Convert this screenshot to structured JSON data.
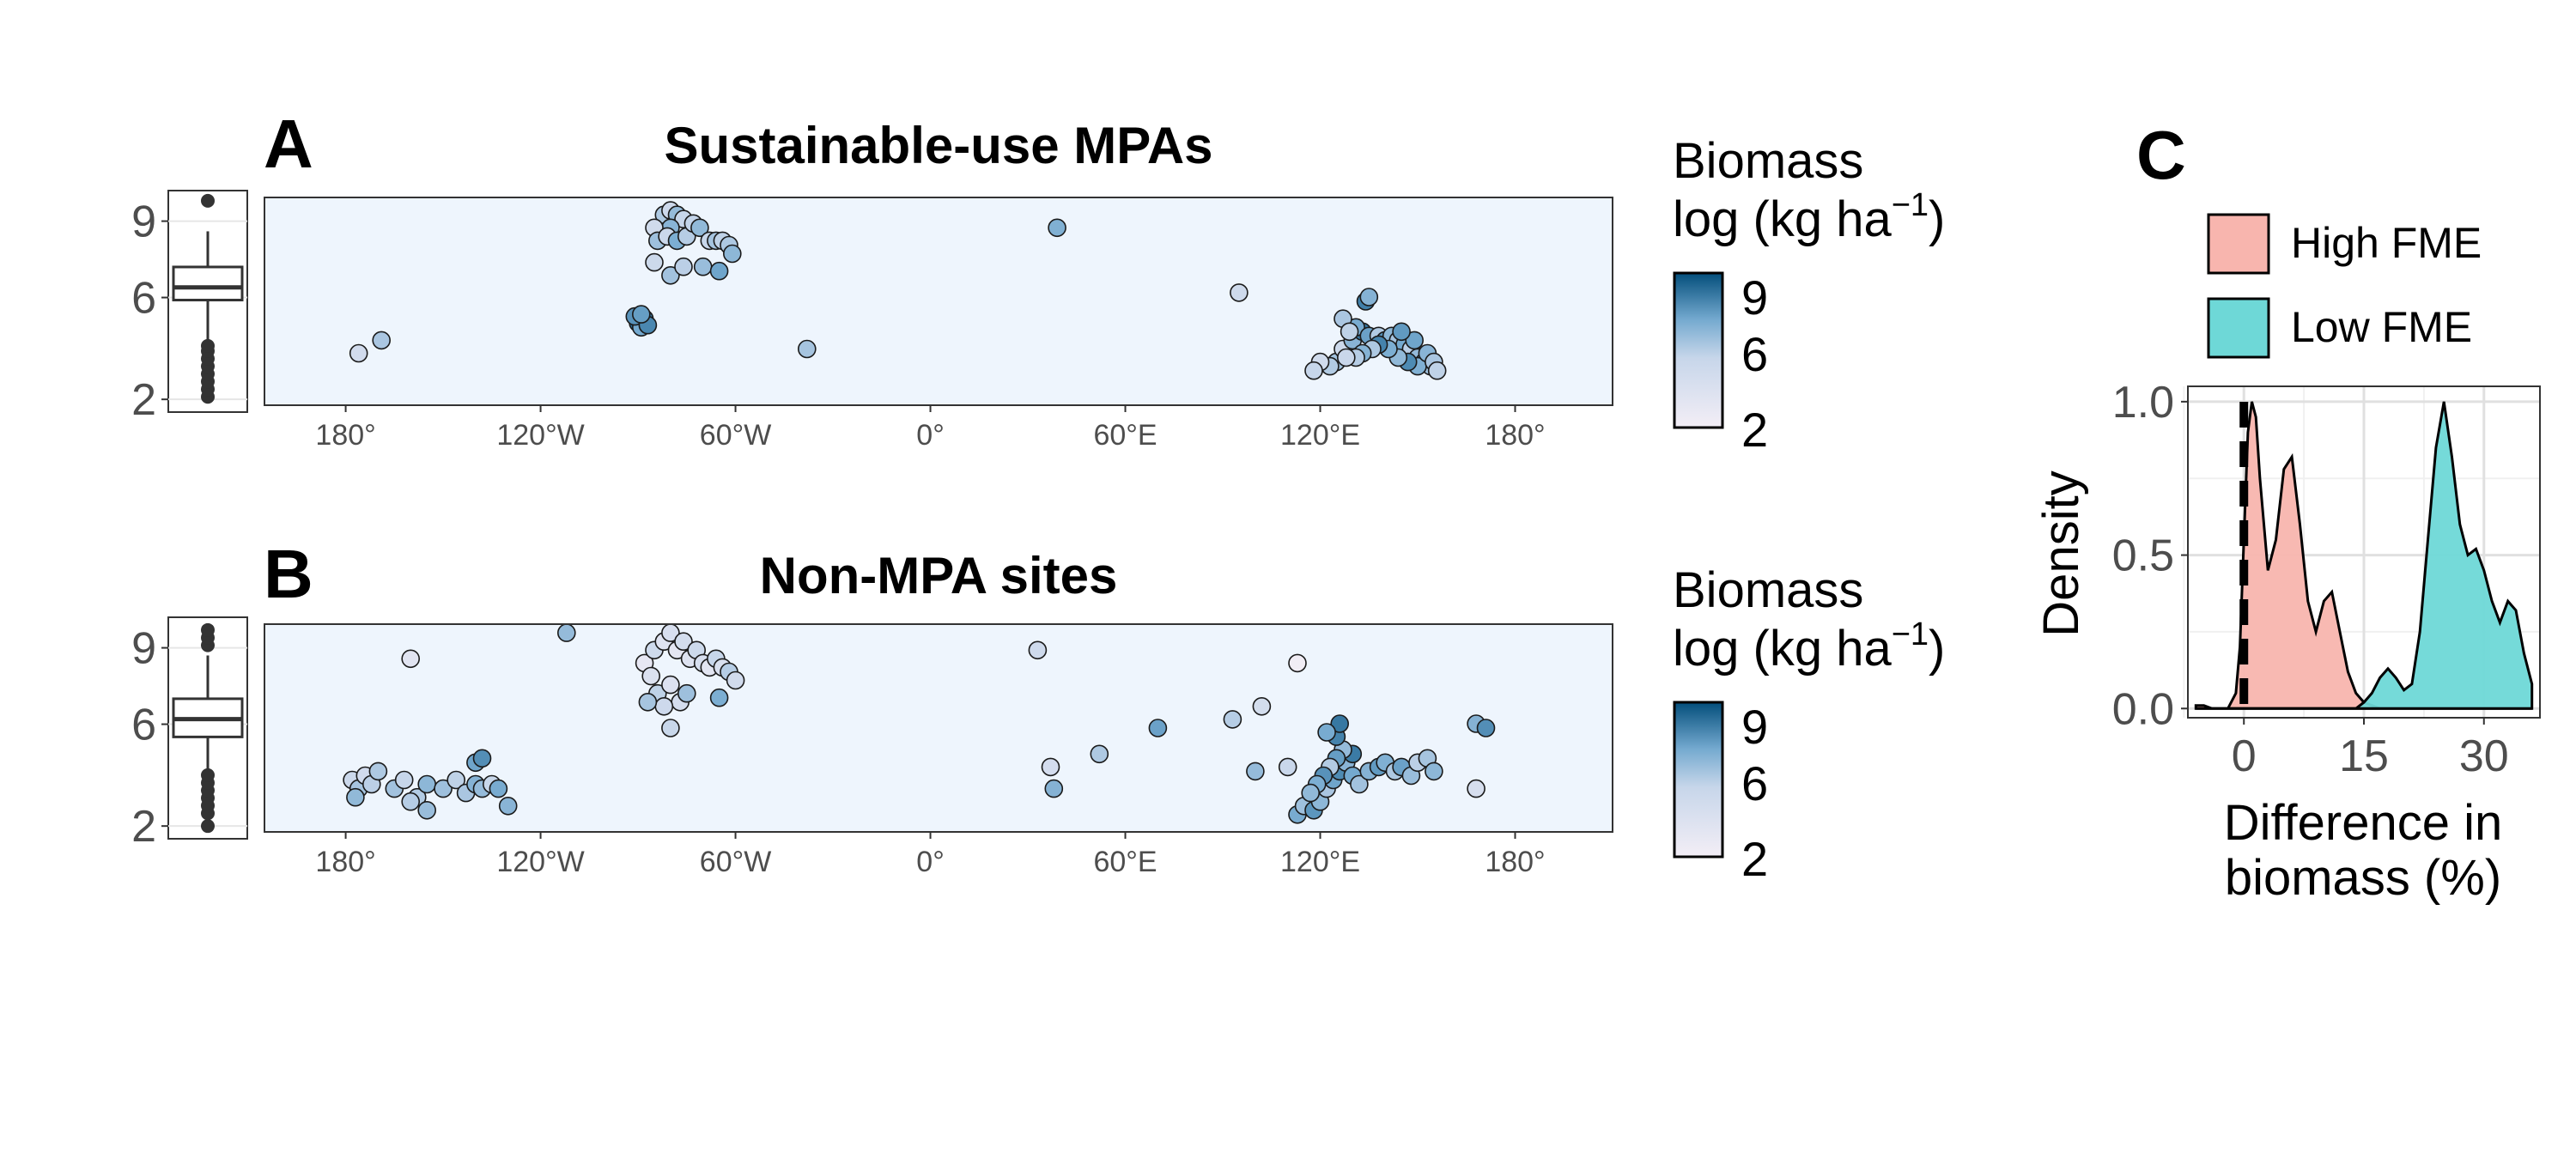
{
  "figure": {
    "panel_a": {
      "letter": "A",
      "title": "Sustainable-use MPAs",
      "legend": {
        "title_line1": "Biomass",
        "title_line2": "log (kg ha",
        "title_sup": "−1",
        "title_close": ")",
        "ticks": [
          "9",
          "6",
          "2"
        ]
      }
    },
    "panel_b": {
      "letter": "B",
      "title": "Non-MPA sites",
      "legend": {
        "title_line1": "Biomass",
        "title_line2": "log (kg ha",
        "title_sup": "−1",
        "title_close": ")",
        "ticks": [
          "9",
          "6",
          "2"
        ]
      }
    },
    "panel_c": {
      "letter": "C",
      "ylabel": "Density",
      "xlabel_line1": "Difference in",
      "xlabel_line2": "biomass (%)",
      "legend": [
        {
          "label": "High FME",
          "color": "#F8B5AE"
        },
        {
          "label": "Low FME",
          "color": "#6ED8D7"
        }
      ]
    },
    "map_ticks": [
      "180°",
      "120°W",
      "60°W",
      "0°",
      "60°E",
      "120°E",
      "180°"
    ],
    "colors": {
      "ocean": "#EEF5FD",
      "land": "#D9D9D9",
      "gradient_low": "#F3EEF6",
      "gradient_mid": "#74A9CF",
      "gradient_high": "#034E7B",
      "point_stroke": "#1a1a1a",
      "high_fme": "#F8B5AE",
      "low_fme": "#6ED8D7"
    }
  },
  "chart_data": [
    {
      "type": "scatter",
      "panel": "A",
      "title": "Sustainable-use MPAs",
      "xlabel": "",
      "ylabel": "",
      "x_ticks": [
        "180°",
        "120°W",
        "60°W",
        "0°",
        "60°E",
        "120°E",
        "180°"
      ],
      "xlim": [
        -205,
        210
      ],
      "color_scale": {
        "name": "Biomass log (kg ha−1)",
        "range": [
          2,
          10
        ],
        "ticks": [
          2,
          6,
          9
        ]
      },
      "marginal_boxplot": {
        "y_ticks": [
          2,
          6,
          9
        ],
        "ylim": [
          1.5,
          10.2
        ],
        "min": 2.1,
        "q1": 5.9,
        "median": 6.4,
        "q3": 7.2,
        "max": 8.6,
        "outliers_low": [
          2.1,
          2.4,
          2.7,
          3.0,
          3.3,
          3.6,
          3.9,
          4.1
        ],
        "outliers_high": [
          9.8
        ]
      },
      "points": [
        {
          "lon": -176,
          "lat": -8,
          "v": 4.8
        },
        {
          "lon": -169,
          "lat": -5,
          "v": 6.3
        },
        {
          "lon": -88,
          "lat": 0,
          "v": 8.8
        },
        {
          "lon": -90,
          "lat": -1,
          "v": 9.2
        },
        {
          "lon": -89,
          "lat": -2,
          "v": 7.6
        },
        {
          "lon": -91,
          "lat": 0.5,
          "v": 8.2
        },
        {
          "lon": -87,
          "lat": -1.5,
          "v": 8.5
        },
        {
          "lon": -89,
          "lat": 1,
          "v": 7.9
        },
        {
          "lon": -82,
          "lat": 24,
          "v": 6.2
        },
        {
          "lon": -80,
          "lat": 25,
          "v": 5.1
        },
        {
          "lon": -78,
          "lat": 24,
          "v": 6.8
        },
        {
          "lon": -76,
          "lat": 23,
          "v": 5.6
        },
        {
          "lon": -80,
          "lat": 21,
          "v": 7.1
        },
        {
          "lon": -85,
          "lat": 21,
          "v": 4.9
        },
        {
          "lon": -84,
          "lat": 18,
          "v": 6.6
        },
        {
          "lon": -81,
          "lat": 19,
          "v": 5.3
        },
        {
          "lon": -78,
          "lat": 18,
          "v": 7.4
        },
        {
          "lon": -75,
          "lat": 19,
          "v": 6.0
        },
        {
          "lon": -73,
          "lat": 22,
          "v": 5.7
        },
        {
          "lon": -71,
          "lat": 21,
          "v": 6.9
        },
        {
          "lon": -68,
          "lat": 18,
          "v": 5.5
        },
        {
          "lon": -66,
          "lat": 18,
          "v": 6.4
        },
        {
          "lon": -64,
          "lat": 18,
          "v": 5.8
        },
        {
          "lon": -62,
          "lat": 17,
          "v": 6.2
        },
        {
          "lon": -61,
          "lat": 15,
          "v": 7.0
        },
        {
          "lon": -80,
          "lat": 10,
          "v": 6.5
        },
        {
          "lon": -76,
          "lat": 12,
          "v": 5.9
        },
        {
          "lon": -70,
          "lat": 12,
          "v": 6.7
        },
        {
          "lon": -65,
          "lat": 11,
          "v": 7.7
        },
        {
          "lon": -85,
          "lat": 13,
          "v": 5.2
        },
        {
          "lon": -38,
          "lat": -7,
          "v": 6.4
        },
        {
          "lon": 39,
          "lat": 21,
          "v": 7.3
        },
        {
          "lon": 95,
          "lat": 6,
          "v": 5.0
        },
        {
          "lon": 125,
          "lat": -10,
          "v": 6.5
        },
        {
          "lon": 127,
          "lat": -7,
          "v": 5.2
        },
        {
          "lon": 130,
          "lat": -5,
          "v": 7.1
        },
        {
          "lon": 133,
          "lat": -3,
          "v": 8.9
        },
        {
          "lon": 131,
          "lat": -2,
          "v": 7.5
        },
        {
          "lon": 127,
          "lat": 0,
          "v": 6.3
        },
        {
          "lon": 129,
          "lat": -3,
          "v": 5.8
        },
        {
          "lon": 135,
          "lat": -4,
          "v": 7.8
        },
        {
          "lon": 138,
          "lat": -4,
          "v": 6.1
        },
        {
          "lon": 140,
          "lat": -5,
          "v": 8.2
        },
        {
          "lon": 142,
          "lat": -4,
          "v": 7.0
        },
        {
          "lon": 144,
          "lat": -5,
          "v": 6.4
        },
        {
          "lon": 146,
          "lat": -6,
          "v": 7.6
        },
        {
          "lon": 148,
          "lat": -7,
          "v": 5.9
        },
        {
          "lon": 150,
          "lat": -9,
          "v": 6.8
        },
        {
          "lon": 152,
          "lat": -10,
          "v": 7.9
        },
        {
          "lon": 154,
          "lat": -11,
          "v": 6.6
        },
        {
          "lon": 150,
          "lat": -11,
          "v": 7.3
        },
        {
          "lon": 147,
          "lat": -10,
          "v": 8.4
        },
        {
          "lon": 144,
          "lat": -9,
          "v": 6.9
        },
        {
          "lon": 141,
          "lat": -7,
          "v": 7.4
        },
        {
          "lon": 138,
          "lat": -6,
          "v": 8.6
        },
        {
          "lon": 136,
          "lat": -7,
          "v": 6.2
        },
        {
          "lon": 133,
          "lat": -8,
          "v": 7.2
        },
        {
          "lon": 131,
          "lat": -9,
          "v": 6.0
        },
        {
          "lon": 128,
          "lat": -9,
          "v": 5.4
        },
        {
          "lon": 123,
          "lat": -11,
          "v": 6.1
        },
        {
          "lon": 120,
          "lat": -10,
          "v": 4.9
        },
        {
          "lon": 118,
          "lat": -12,
          "v": 5.6
        },
        {
          "lon": 153,
          "lat": -8,
          "v": 7.1
        },
        {
          "lon": 155,
          "lat": -10,
          "v": 6.3
        },
        {
          "lon": 156,
          "lat": -12,
          "v": 5.8
        },
        {
          "lon": 149,
          "lat": -5,
          "v": 7.7
        },
        {
          "lon": 145,
          "lat": -3,
          "v": 8.0
        },
        {
          "lon": 134,
          "lat": 4,
          "v": 8.7
        },
        {
          "lon": 135,
          "lat": 5,
          "v": 7.2
        }
      ]
    },
    {
      "type": "scatter",
      "panel": "B",
      "title": "Non-MPA sites",
      "xlabel": "",
      "ylabel": "",
      "x_ticks": [
        "180°",
        "120°W",
        "60°W",
        "0°",
        "60°E",
        "120°E",
        "180°"
      ],
      "xlim": [
        -205,
        210
      ],
      "color_scale": {
        "name": "Biomass log (kg ha−1)",
        "range": [
          2,
          10
        ],
        "ticks": [
          2,
          6,
          9
        ]
      },
      "marginal_boxplot": {
        "y_ticks": [
          2,
          6,
          9
        ],
        "ylim": [
          1.5,
          10.2
        ],
        "min": 2.1,
        "q1": 5.5,
        "median": 6.2,
        "q3": 7.0,
        "max": 8.7,
        "outliers_low": [
          2.0,
          2.5,
          2.8,
          3.1,
          3.4,
          3.7,
          4.0
        ],
        "outliers_high": [
          9.1,
          9.4,
          9.7
        ]
      },
      "points": [
        {
          "lon": -178,
          "lat": -8,
          "v": 5.3
        },
        {
          "lon": -176,
          "lat": -10,
          "v": 6.4
        },
        {
          "lon": -174,
          "lat": -7,
          "v": 4.8
        },
        {
          "lon": -177,
          "lat": -12,
          "v": 6.9
        },
        {
          "lon": -172,
          "lat": -9,
          "v": 5.9
        },
        {
          "lon": -170,
          "lat": -6,
          "v": 6.2
        },
        {
          "lon": -165,
          "lat": -10,
          "v": 6.5
        },
        {
          "lon": -162,
          "lat": -8,
          "v": 5.6
        },
        {
          "lon": -158,
          "lat": -12,
          "v": 6.1
        },
        {
          "lon": -155,
          "lat": -9,
          "v": 7.0
        },
        {
          "lon": -150,
          "lat": -10,
          "v": 6.6
        },
        {
          "lon": -146,
          "lat": -8,
          "v": 5.8
        },
        {
          "lon": -143,
          "lat": -11,
          "v": 6.3
        },
        {
          "lon": -140,
          "lat": -9,
          "v": 7.2
        },
        {
          "lon": -138,
          "lat": -10,
          "v": 6.8
        },
        {
          "lon": -135,
          "lat": -9,
          "v": 5.5
        },
        {
          "lon": -133,
          "lat": -10,
          "v": 7.5
        },
        {
          "lon": -130,
          "lat": -14,
          "v": 7.1
        },
        {
          "lon": -140,
          "lat": -4,
          "v": 7.7
        },
        {
          "lon": -138,
          "lat": -3,
          "v": 8.3
        },
        {
          "lon": -155,
          "lat": -15,
          "v": 6.7
        },
        {
          "lon": -160,
          "lat": -13,
          "v": 6.0
        },
        {
          "lon": -160,
          "lat": 20,
          "v": 3.5
        },
        {
          "lon": -112,
          "lat": 26,
          "v": 6.8
        },
        {
          "lon": -88,
          "lat": 19,
          "v": 3.0
        },
        {
          "lon": -86,
          "lat": 16,
          "v": 4.0
        },
        {
          "lon": -85,
          "lat": 22,
          "v": 5.0
        },
        {
          "lon": -82,
          "lat": 24,
          "v": 3.6
        },
        {
          "lon": -80,
          "lat": 26,
          "v": 4.2
        },
        {
          "lon": -78,
          "lat": 22,
          "v": 3.2
        },
        {
          "lon": -76,
          "lat": 24,
          "v": 4.6
        },
        {
          "lon": -74,
          "lat": 20,
          "v": 3.8
        },
        {
          "lon": -72,
          "lat": 22,
          "v": 5.2
        },
        {
          "lon": -70,
          "lat": 19,
          "v": 4.4
        },
        {
          "lon": -68,
          "lat": 18,
          "v": 3.4
        },
        {
          "lon": -66,
          "lat": 20,
          "v": 5.6
        },
        {
          "lon": -64,
          "lat": 18,
          "v": 4.1
        },
        {
          "lon": -62,
          "lat": 17,
          "v": 6.0
        },
        {
          "lon": -60,
          "lat": 15,
          "v": 4.8
        },
        {
          "lon": -84,
          "lat": 12,
          "v": 5.8
        },
        {
          "lon": -80,
          "lat": 14,
          "v": 3.9
        },
        {
          "lon": -77,
          "lat": 10,
          "v": 4.5
        },
        {
          "lon": -75,
          "lat": 12,
          "v": 6.6
        },
        {
          "lon": -82,
          "lat": 9,
          "v": 5.1
        },
        {
          "lon": -87,
          "lat": 10,
          "v": 6.4
        },
        {
          "lon": -80,
          "lat": 4,
          "v": 5.5
        },
        {
          "lon": -65,
          "lat": 11,
          "v": 7.4
        },
        {
          "lon": 33,
          "lat": 22,
          "v": 5.0
        },
        {
          "lon": 37,
          "lat": -5,
          "v": 4.5
        },
        {
          "lon": 38,
          "lat": -10,
          "v": 7.2
        },
        {
          "lon": 52,
          "lat": -2,
          "v": 6.2
        },
        {
          "lon": 70,
          "lat": 4,
          "v": 7.8
        },
        {
          "lon": 93,
          "lat": 6,
          "v": 6.0
        },
        {
          "lon": 100,
          "lat": -6,
          "v": 6.8
        },
        {
          "lon": 102,
          "lat": 9,
          "v": 4.6
        },
        {
          "lon": 113,
          "lat": 19,
          "v": 2.2
        },
        {
          "lon": 110,
          "lat": -5,
          "v": 5.4
        },
        {
          "lon": 113,
          "lat": -16,
          "v": 7.5
        },
        {
          "lon": 115,
          "lat": -14,
          "v": 6.6
        },
        {
          "lon": 118,
          "lat": -15,
          "v": 8.1
        },
        {
          "lon": 120,
          "lat": -13,
          "v": 7.0
        },
        {
          "lon": 122,
          "lat": -10,
          "v": 6.3
        },
        {
          "lon": 124,
          "lat": -8,
          "v": 7.7
        },
        {
          "lon": 126,
          "lat": -6,
          "v": 8.4
        },
        {
          "lon": 128,
          "lat": -4,
          "v": 7.1
        },
        {
          "lon": 130,
          "lat": -2,
          "v": 8.8
        },
        {
          "lon": 127,
          "lat": -1,
          "v": 6.8
        },
        {
          "lon": 125,
          "lat": -3,
          "v": 7.9
        },
        {
          "lon": 123,
          "lat": -5,
          "v": 6.1
        },
        {
          "lon": 121,
          "lat": -7,
          "v": 8.2
        },
        {
          "lon": 119,
          "lat": -9,
          "v": 7.4
        },
        {
          "lon": 117,
          "lat": -11,
          "v": 6.9
        },
        {
          "lon": 130,
          "lat": -7,
          "v": 7.6
        },
        {
          "lon": 132,
          "lat": -9,
          "v": 6.5
        },
        {
          "lon": 135,
          "lat": -6,
          "v": 7.2
        },
        {
          "lon": 138,
          "lat": -5,
          "v": 8.0
        },
        {
          "lon": 140,
          "lat": -4,
          "v": 7.3
        },
        {
          "lon": 143,
          "lat": -6,
          "v": 6.2
        },
        {
          "lon": 145,
          "lat": -5,
          "v": 7.8
        },
        {
          "lon": 148,
          "lat": -7,
          "v": 6.7
        },
        {
          "lon": 150,
          "lat": -4,
          "v": 5.9
        },
        {
          "lon": 153,
          "lat": -3,
          "v": 6.4
        },
        {
          "lon": 155,
          "lat": -6,
          "v": 7.0
        },
        {
          "lon": 125,
          "lat": 2,
          "v": 8.6
        },
        {
          "lon": 126,
          "lat": 5,
          "v": 8.9
        },
        {
          "lon": 122,
          "lat": 3,
          "v": 7.5
        },
        {
          "lon": 168,
          "lat": 5,
          "v": 7.2
        },
        {
          "lon": 171,
          "lat": 4,
          "v": 8.3
        },
        {
          "lon": 168,
          "lat": -10,
          "v": 4.4
        }
      ]
    },
    {
      "type": "area",
      "panel": "C",
      "title": "",
      "xlabel": "Difference in biomass (%)",
      "ylabel": "Density",
      "xlim": [
        -7,
        37
      ],
      "ylim": [
        -0.03,
        1.05
      ],
      "x_ticks": [
        0,
        15,
        30
      ],
      "y_ticks": [
        0.0,
        0.5,
        1.0
      ],
      "y_tick_labels": [
        "0.0",
        "0.5",
        "1.0"
      ],
      "vline": {
        "x": 0,
        "style": "dashed"
      },
      "x": [
        -6,
        -5,
        -4,
        -3,
        -2,
        -1,
        -0.5,
        0,
        0.5,
        1,
        1.5,
        2,
        3,
        4,
        5,
        6,
        7,
        8,
        9,
        10,
        11,
        12,
        13,
        14,
        15,
        16,
        17,
        18,
        19,
        20,
        21,
        22,
        23,
        24,
        25,
        26,
        27,
        28,
        29,
        30,
        31,
        32,
        33,
        34,
        35,
        36
      ],
      "series": [
        {
          "name": "High FME",
          "color": "#F8B5AE",
          "values": [
            0.01,
            0.01,
            0.0,
            0.0,
            0.0,
            0.05,
            0.2,
            0.55,
            0.9,
            1.0,
            0.95,
            0.75,
            0.45,
            0.55,
            0.78,
            0.82,
            0.6,
            0.35,
            0.25,
            0.35,
            0.38,
            0.25,
            0.12,
            0.05,
            0.02,
            0.01,
            0.0,
            0.0,
            0.0,
            0.0,
            0.0,
            0.0,
            0.0,
            0.0,
            0.0,
            0.0,
            0.0,
            0.0,
            0.0,
            0.0,
            0.0,
            0.0,
            0.0,
            0.0,
            0.0,
            0.0
          ]
        },
        {
          "name": "Low FME",
          "color": "#6ED8D7",
          "values": [
            0.0,
            0.0,
            0.0,
            0.0,
            0.0,
            0.0,
            0.0,
            0.0,
            0.0,
            0.0,
            0.0,
            0.0,
            0.0,
            0.0,
            0.0,
            0.0,
            0.0,
            0.0,
            0.0,
            0.0,
            0.0,
            0.0,
            0.0,
            0.0,
            0.02,
            0.05,
            0.1,
            0.13,
            0.1,
            0.06,
            0.08,
            0.25,
            0.55,
            0.85,
            1.0,
            0.82,
            0.6,
            0.5,
            0.52,
            0.45,
            0.35,
            0.28,
            0.35,
            0.32,
            0.18,
            0.08
          ]
        }
      ]
    }
  ]
}
